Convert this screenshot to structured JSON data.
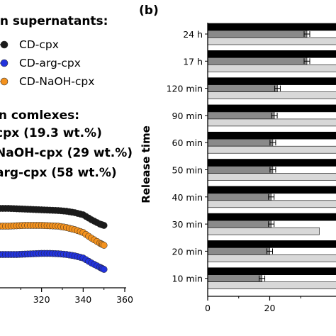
{
  "chart_data": [
    {
      "type": "line",
      "legend_top_title": "in supernatants:",
      "legend_bottom_title": "in comlexes:",
      "series": [
        {
          "name": "CD-cpx",
          "color": "#1a1a1a",
          "x": [
            300,
            304,
            308,
            312,
            316,
            320,
            324,
            328,
            332,
            336,
            340,
            344,
            348,
            350
          ],
          "y": [
            294,
            294,
            294.5,
            295,
            295.5,
            296,
            296.5,
            297,
            298,
            300,
            303,
            310,
            316,
            318
          ]
        },
        {
          "name": "CD-arg-cpx",
          "color": "#2233dd",
          "x": [
            300,
            304,
            308,
            312,
            316,
            320,
            324,
            328,
            332,
            336,
            340,
            344,
            348,
            350
          ],
          "y": [
            359,
            359,
            359,
            358.5,
            358,
            357.5,
            357.5,
            358,
            359,
            361,
            364,
            371,
            377,
            380
          ]
        },
        {
          "name": "CD-NaOH-cpx",
          "color": "#f4921e",
          "x": [
            300,
            304,
            308,
            312,
            316,
            320,
            324,
            328,
            332,
            336,
            340,
            344,
            348,
            350
          ],
          "y": [
            319,
            319,
            318.5,
            318,
            318,
            318,
            318.5,
            319,
            321,
            324,
            328,
            336,
            343,
            346
          ]
        }
      ],
      "complex_labels": [
        "cpx (19.3 wt.%)",
        "NaOH-cpx (29 wt.%)",
        "arg-cpx (58 wt.%)"
      ],
      "legend_labels": [
        "CD-cpx",
        "CD-arg-cpx",
        "CD-NaOH-cpx"
      ],
      "xticks": [
        320,
        340,
        360
      ]
    },
    {
      "type": "bar",
      "panel_label": "(b)",
      "ylabel": "Release time",
      "xticks": [
        0,
        20
      ],
      "categories": [
        "24 h",
        "17 h",
        "120 min",
        "90 min",
        "60 min",
        "50 min",
        "40 min",
        "30 min",
        "20 min",
        "10 min"
      ],
      "series": [
        {
          "color": "#000000",
          "values": [
            60,
            60,
            60,
            60,
            60,
            60,
            60,
            60,
            60,
            60
          ]
        },
        {
          "color": "#8a8a8a",
          "values": [
            32,
            32,
            22.5,
            21.5,
            21,
            21,
            20.5,
            20.5,
            20,
            17.5
          ]
        },
        {
          "color": "#d8d8d8",
          "values": [
            60,
            60,
            60,
            60,
            60,
            60,
            60,
            36,
            60,
            60
          ]
        }
      ]
    }
  ]
}
